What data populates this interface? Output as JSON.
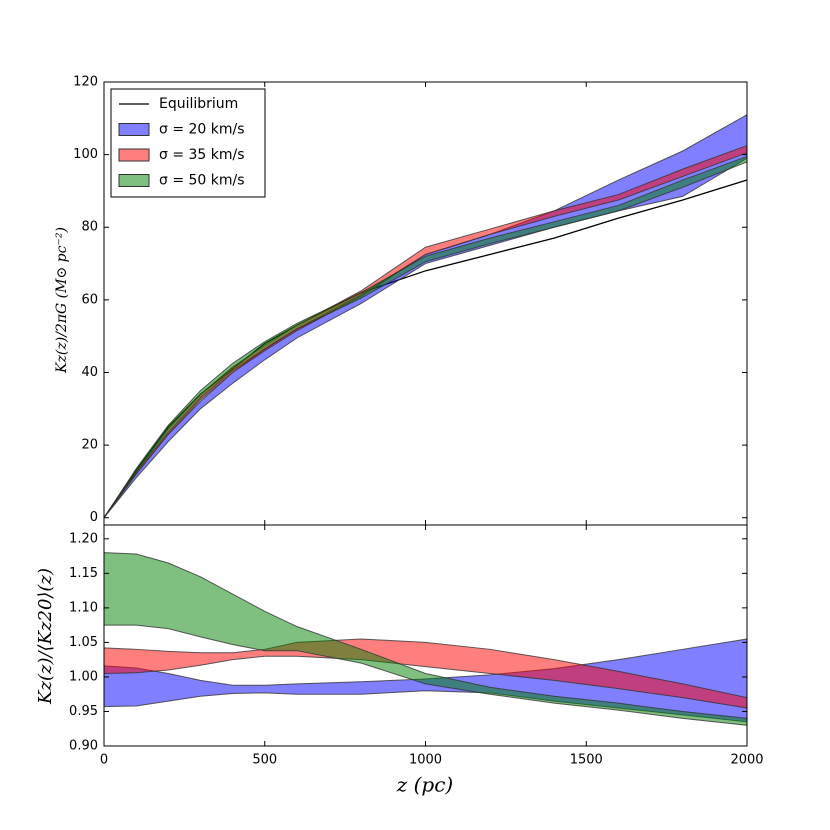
{
  "chart_data": [
    {
      "type": "band",
      "ylabel": "Kz(z)/2πG (M⊙ pc⁻²)",
      "x": [
        0,
        100,
        200,
        300,
        400,
        500,
        600,
        800,
        1000,
        1200,
        1400,
        1600,
        1800,
        2000
      ],
      "xlim": [
        0,
        2000
      ],
      "ylim": [
        -2,
        120
      ],
      "yticks": [
        0,
        20,
        40,
        60,
        80,
        100,
        120
      ],
      "legend": "upper left",
      "series": [
        {
          "name": "Equilibrium",
          "color": "#000000",
          "values": [
            0,
            13,
            25,
            34,
            41,
            48,
            53,
            62,
            68,
            72.5,
            77,
            82.5,
            87.5,
            93
          ]
        },
        {
          "name": "σ = 20 km/s",
          "color": "#0000ff",
          "low": [
            0,
            11,
            21,
            30,
            37,
            43.5,
            49.5,
            59,
            70,
            75,
            80,
            84.5,
            88.5,
            99
          ],
          "high": [
            0,
            12,
            23,
            32,
            40,
            46.5,
            52,
            61.5,
            72.5,
            78,
            84.5,
            93,
            101,
            111
          ]
        },
        {
          "name": "σ = 35 km/s",
          "color": "#ff0000",
          "low": [
            0,
            12,
            23,
            32.5,
            40,
            46,
            51.5,
            61,
            72.5,
            78,
            83,
            87.5,
            94,
            100.5
          ],
          "high": [
            0,
            12.5,
            24.5,
            34,
            41.5,
            47.5,
            53,
            62.5,
            74.5,
            79.5,
            84.5,
            89,
            96,
            102.5
          ]
        },
        {
          "name": "σ = 50 km/s",
          "color": "#008000",
          "low": [
            0,
            12.5,
            23.5,
            33,
            40.5,
            46.5,
            52,
            60.5,
            70.5,
            75.5,
            80,
            84.5,
            91,
            98
          ],
          "high": [
            0,
            13.5,
            25.5,
            35,
            42.5,
            48.5,
            53.5,
            62,
            72,
            77,
            81.5,
            86,
            93,
            99.5
          ]
        }
      ]
    },
    {
      "type": "band",
      "xlabel": "z (pc)",
      "ylabel": "Kz(z)/⟨Kz20⟩(z)",
      "x": [
        0,
        100,
        200,
        300,
        400,
        500,
        600,
        800,
        1000,
        1200,
        1400,
        1600,
        1800,
        2000
      ],
      "xlim": [
        0,
        2000
      ],
      "xticks": [
        0,
        500,
        1000,
        1500,
        2000
      ],
      "ylim": [
        0.9,
        1.22
      ],
      "yticks": [
        {
          "value": 0.9,
          "label": "0.90"
        },
        0.95,
        {
          "value": 1.0,
          "label": "1.00"
        },
        1.05,
        {
          "value": 1.1,
          "label": "1.10"
        },
        1.15,
        {
          "value": 1.2,
          "label": "1.20"
        }
      ],
      "series": [
        {
          "color": "#0000ff",
          "low": [
            0.957,
            0.958,
            0.965,
            0.972,
            0.976,
            0.977,
            0.975,
            0.975,
            0.98,
            0.977,
            0.965,
            0.955,
            0.945,
            0.935
          ],
          "high": [
            1.016,
            1.013,
            1.005,
            0.995,
            0.988,
            0.988,
            0.99,
            0.993,
            0.997,
            1.003,
            1.012,
            1.025,
            1.04,
            1.055
          ]
        },
        {
          "color": "#ff0000",
          "low": [
            1.005,
            1.006,
            1.01,
            1.017,
            1.025,
            1.03,
            1.03,
            1.025,
            1.015,
            1.005,
            0.995,
            0.983,
            0.97,
            0.955
          ],
          "high": [
            1.042,
            1.04,
            1.037,
            1.035,
            1.035,
            1.04,
            1.05,
            1.055,
            1.05,
            1.04,
            1.025,
            1.008,
            0.99,
            0.97
          ]
        },
        {
          "color": "#008000",
          "low": [
            1.075,
            1.075,
            1.07,
            1.058,
            1.047,
            1.038,
            1.038,
            1.02,
            0.99,
            0.975,
            0.962,
            0.952,
            0.94,
            0.93
          ],
          "high": [
            1.18,
            1.178,
            1.165,
            1.145,
            1.12,
            1.095,
            1.073,
            1.04,
            1.005,
            0.985,
            0.972,
            0.962,
            0.95,
            0.94
          ]
        }
      ]
    }
  ]
}
